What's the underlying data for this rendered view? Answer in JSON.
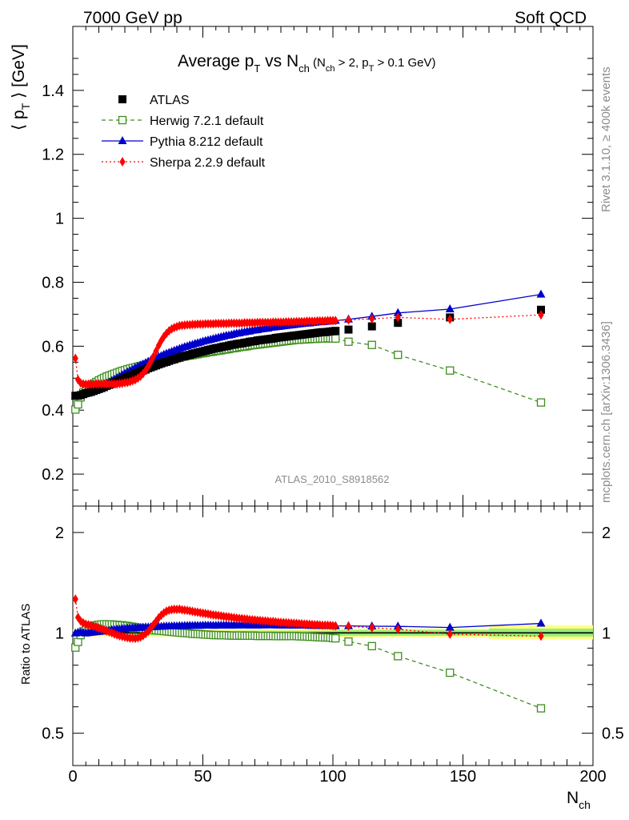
{
  "header": {
    "left": "7000 GeV pp",
    "right": "Soft QCD"
  },
  "title": {
    "main": "Average p",
    "main_sub": "T",
    "mid": " vs N",
    "mid_sub": "ch",
    "paren_open": " (N",
    "paren_sub1": "ch",
    "paren_mid": " > 2, p",
    "paren_sub2": "T",
    "paren_close": " > 0.1 GeV)"
  },
  "ylabel": {
    "open": "⟨ p",
    "sub": "T",
    "close": " ⟩  [GeV]"
  },
  "ratio_ylabel": "Ratio to ATLAS",
  "xlabel": {
    "main": "N",
    "sub": "ch"
  },
  "analysis_label": "ATLAS_2010_S8918562",
  "side_text": {
    "rivet": "Rivet 3.1.10, ≥ 400k events",
    "mcplots": "mcplots.cern.ch [arXiv:1306.3436]"
  },
  "colors": {
    "atlas": "#000000",
    "herwig": "#3e8e1f",
    "pythia": "#0000cc",
    "sherpa": "#ff0000",
    "band_inner": "#99ee77",
    "band_outer": "#ffff88"
  },
  "chart_data": [
    {
      "type": "scatter",
      "panel": "main",
      "xlim": [
        0,
        200
      ],
      "ylim": [
        0.1,
        1.6
      ],
      "yticks": [
        "0.2",
        "0.4",
        "0.6",
        "0.8",
        "1",
        "1.2",
        "1.4"
      ],
      "xticks": [
        "0",
        "50",
        "100",
        "150",
        "200"
      ],
      "legend_position": "top-left",
      "series": [
        {
          "name": "ATLAS",
          "style": "square-filled",
          "x": [
            1,
            2,
            3,
            4,
            5,
            6,
            7,
            8,
            9,
            10,
            11,
            12,
            13,
            14,
            15,
            16,
            17,
            18,
            19,
            20,
            21,
            22,
            23,
            24,
            25,
            26,
            27,
            28,
            29,
            30,
            31,
            32,
            33,
            34,
            35,
            36,
            37,
            38,
            39,
            40,
            41,
            42,
            43,
            44,
            45,
            46,
            47,
            48,
            49,
            50,
            51,
            52,
            53,
            54,
            55,
            56,
            57,
            58,
            59,
            60,
            61,
            62,
            63,
            64,
            65,
            66,
            67,
            68,
            69,
            70,
            71,
            72,
            73,
            74,
            75,
            76,
            77,
            78,
            79,
            80,
            81,
            82,
            83,
            84,
            85,
            86,
            87,
            88,
            89,
            90,
            91,
            92,
            93,
            94,
            95,
            96,
            97,
            98,
            99,
            100,
            101,
            106,
            115,
            125,
            145,
            180
          ],
          "y": [
            0.445,
            0.445,
            0.447,
            0.45,
            0.453,
            0.455,
            0.457,
            0.46,
            0.463,
            0.466,
            0.469,
            0.472,
            0.476,
            0.479,
            0.482,
            0.486,
            0.489,
            0.493,
            0.496,
            0.5,
            0.503,
            0.507,
            0.51,
            0.514,
            0.517,
            0.521,
            0.524,
            0.527,
            0.531,
            0.534,
            0.537,
            0.54,
            0.543,
            0.546,
            0.549,
            0.551,
            0.554,
            0.557,
            0.559,
            0.562,
            0.564,
            0.567,
            0.569,
            0.571,
            0.573,
            0.576,
            0.578,
            0.58,
            0.582,
            0.584,
            0.586,
            0.588,
            0.59,
            0.592,
            0.594,
            0.595,
            0.597,
            0.599,
            0.6,
            0.602,
            0.604,
            0.605,
            0.607,
            0.608,
            0.609,
            0.611,
            0.612,
            0.614,
            0.615,
            0.616,
            0.618,
            0.619,
            0.62,
            0.621,
            0.622,
            0.623,
            0.624,
            0.626,
            0.627,
            0.628,
            0.629,
            0.63,
            0.631,
            0.632,
            0.633,
            0.634,
            0.635,
            0.636,
            0.637,
            0.638,
            0.639,
            0.64,
            0.641,
            0.642,
            0.643,
            0.644,
            0.644,
            0.645,
            0.646,
            0.647,
            0.648,
            0.652,
            0.662,
            0.673,
            0.69,
            0.714
          ]
        },
        {
          "name": "Herwig 7.2.1 default",
          "style": "square-open-dashed",
          "x": [
            1,
            2,
            3,
            4,
            5,
            6,
            7,
            8,
            9,
            10,
            11,
            12,
            13,
            14,
            15,
            16,
            17,
            18,
            19,
            20,
            21,
            22,
            23,
            24,
            25,
            26,
            27,
            28,
            29,
            30,
            31,
            32,
            33,
            34,
            35,
            36,
            37,
            38,
            39,
            40,
            41,
            42,
            43,
            44,
            45,
            46,
            47,
            48,
            49,
            50,
            51,
            52,
            53,
            54,
            55,
            56,
            57,
            58,
            59,
            60,
            61,
            62,
            63,
            64,
            65,
            66,
            67,
            68,
            69,
            70,
            71,
            72,
            73,
            74,
            75,
            76,
            77,
            78,
            79,
            80,
            81,
            82,
            83,
            84,
            85,
            86,
            87,
            88,
            89,
            90,
            91,
            92,
            93,
            94,
            95,
            96,
            97,
            98,
            99,
            100,
            101,
            106,
            115,
            125,
            145,
            180
          ],
          "y": [
            0.402,
            0.418,
            0.44,
            0.455,
            0.465,
            0.472,
            0.478,
            0.483,
            0.488,
            0.493,
            0.497,
            0.501,
            0.505,
            0.508,
            0.511,
            0.514,
            0.517,
            0.52,
            0.523,
            0.525,
            0.528,
            0.53,
            0.532,
            0.534,
            0.536,
            0.538,
            0.54,
            0.542,
            0.544,
            0.546,
            0.548,
            0.55,
            0.552,
            0.554,
            0.556,
            0.557,
            0.559,
            0.561,
            0.562,
            0.564,
            0.565,
            0.567,
            0.568,
            0.57,
            0.571,
            0.572,
            0.574,
            0.575,
            0.577,
            0.578,
            0.579,
            0.581,
            0.582,
            0.583,
            0.585,
            0.586,
            0.587,
            0.589,
            0.59,
            0.591,
            0.593,
            0.594,
            0.595,
            0.597,
            0.598,
            0.599,
            0.6,
            0.602,
            0.603,
            0.604,
            0.605,
            0.606,
            0.607,
            0.608,
            0.609,
            0.61,
            0.611,
            0.612,
            0.613,
            0.614,
            0.615,
            0.616,
            0.617,
            0.618,
            0.619,
            0.62,
            0.62,
            0.621,
            0.621,
            0.622,
            0.622,
            0.623,
            0.623,
            0.623,
            0.624,
            0.624,
            0.624,
            0.625,
            0.625,
            0.624,
            0.624,
            0.614,
            0.604,
            0.573,
            0.524,
            0.424
          ]
        },
        {
          "name": "Pythia 8.212 default",
          "style": "triangle-filled-solid",
          "x": [
            1,
            2,
            3,
            4,
            5,
            6,
            7,
            8,
            9,
            10,
            11,
            12,
            13,
            14,
            15,
            16,
            17,
            18,
            19,
            20,
            21,
            22,
            23,
            24,
            25,
            26,
            27,
            28,
            29,
            30,
            31,
            32,
            33,
            34,
            35,
            36,
            37,
            38,
            39,
            40,
            41,
            42,
            43,
            44,
            45,
            46,
            47,
            48,
            49,
            50,
            51,
            52,
            53,
            54,
            55,
            56,
            57,
            58,
            59,
            60,
            61,
            62,
            63,
            64,
            65,
            66,
            67,
            68,
            69,
            70,
            71,
            72,
            73,
            74,
            75,
            76,
            77,
            78,
            79,
            80,
            81,
            82,
            83,
            84,
            85,
            86,
            87,
            88,
            89,
            90,
            91,
            92,
            93,
            94,
            95,
            96,
            97,
            98,
            99,
            100,
            101,
            106,
            115,
            125,
            145,
            180
          ],
          "y": [
            0.444,
            0.446,
            0.448,
            0.45,
            0.452,
            0.455,
            0.458,
            0.462,
            0.466,
            0.47,
            0.474,
            0.478,
            0.483,
            0.487,
            0.492,
            0.496,
            0.501,
            0.505,
            0.51,
            0.514,
            0.519,
            0.523,
            0.527,
            0.532,
            0.536,
            0.54,
            0.544,
            0.548,
            0.552,
            0.556,
            0.56,
            0.563,
            0.567,
            0.57,
            0.574,
            0.577,
            0.58,
            0.583,
            0.586,
            0.589,
            0.592,
            0.595,
            0.598,
            0.6,
            0.603,
            0.605,
            0.608,
            0.61,
            0.612,
            0.615,
            0.617,
            0.619,
            0.621,
            0.623,
            0.625,
            0.627,
            0.629,
            0.631,
            0.633,
            0.634,
            0.636,
            0.638,
            0.64,
            0.641,
            0.643,
            0.644,
            0.646,
            0.647,
            0.649,
            0.65,
            0.651,
            0.653,
            0.654,
            0.655,
            0.656,
            0.658,
            0.659,
            0.66,
            0.661,
            0.662,
            0.663,
            0.664,
            0.665,
            0.666,
            0.667,
            0.668,
            0.669,
            0.67,
            0.671,
            0.672,
            0.672,
            0.673,
            0.674,
            0.675,
            0.676,
            0.676,
            0.677,
            0.678,
            0.679,
            0.679,
            0.68,
            0.684,
            0.693,
            0.704,
            0.716,
            0.762
          ]
        },
        {
          "name": "Sherpa 2.2.9 default",
          "style": "diamond-filled-dotted",
          "x": [
            1,
            2,
            3,
            4,
            5,
            6,
            7,
            8,
            9,
            10,
            11,
            12,
            13,
            14,
            15,
            16,
            17,
            18,
            19,
            20,
            21,
            22,
            23,
            24,
            25,
            26,
            27,
            28,
            29,
            30,
            31,
            32,
            33,
            34,
            35,
            36,
            37,
            38,
            39,
            40,
            41,
            42,
            43,
            44,
            45,
            46,
            47,
            48,
            49,
            50,
            51,
            52,
            53,
            54,
            55,
            56,
            57,
            58,
            59,
            60,
            61,
            62,
            63,
            64,
            65,
            66,
            67,
            68,
            69,
            70,
            71,
            72,
            73,
            74,
            75,
            76,
            77,
            78,
            79,
            80,
            81,
            82,
            83,
            84,
            85,
            86,
            87,
            88,
            89,
            90,
            91,
            92,
            93,
            94,
            95,
            96,
            97,
            98,
            99,
            100,
            101,
            106,
            115,
            125,
            145,
            180
          ],
          "y": [
            0.562,
            0.495,
            0.485,
            0.482,
            0.481,
            0.481,
            0.481,
            0.481,
            0.482,
            0.482,
            0.482,
            0.482,
            0.482,
            0.482,
            0.482,
            0.482,
            0.482,
            0.483,
            0.484,
            0.486,
            0.487,
            0.489,
            0.492,
            0.495,
            0.5,
            0.506,
            0.514,
            0.524,
            0.537,
            0.552,
            0.568,
            0.585,
            0.602,
            0.617,
            0.63,
            0.64,
            0.648,
            0.654,
            0.658,
            0.661,
            0.664,
            0.665,
            0.666,
            0.667,
            0.667,
            0.668,
            0.668,
            0.669,
            0.669,
            0.669,
            0.67,
            0.67,
            0.67,
            0.67,
            0.671,
            0.671,
            0.671,
            0.671,
            0.671,
            0.672,
            0.672,
            0.672,
            0.672,
            0.672,
            0.672,
            0.673,
            0.673,
            0.673,
            0.673,
            0.673,
            0.674,
            0.674,
            0.674,
            0.674,
            0.674,
            0.674,
            0.675,
            0.675,
            0.675,
            0.675,
            0.675,
            0.676,
            0.676,
            0.676,
            0.676,
            0.677,
            0.677,
            0.677,
            0.677,
            0.678,
            0.678,
            0.678,
            0.678,
            0.679,
            0.679,
            0.679,
            0.679,
            0.68,
            0.68,
            0.68,
            0.68,
            0.682,
            0.686,
            0.69,
            0.684,
            0.698
          ]
        }
      ]
    },
    {
      "type": "scatter",
      "panel": "ratio",
      "xlim": [
        0,
        200
      ],
      "ylim": [
        0.4,
        2.4
      ],
      "yscale": "log",
      "yticks": [
        "0.5",
        "1",
        "2"
      ],
      "xlabel": "N_ch",
      "ylabel": "Ratio to ATLAS",
      "band": {
        "x": [
          0,
          100,
          160,
          200
        ],
        "inner": [
          [
            0.985,
            1.015
          ],
          [
            0.98,
            1.02
          ],
          [
            0.975,
            1.03
          ],
          [
            0.975,
            1.03
          ]
        ],
        "outer": [
          [
            0.975,
            1.025
          ],
          [
            0.97,
            1.03
          ],
          [
            0.955,
            1.055
          ],
          [
            0.955,
            1.055
          ]
        ]
      },
      "series": [
        {
          "name": "Herwig 7.2.1 default",
          "derived_from": "main"
        },
        {
          "name": "Pythia 8.212 default",
          "derived_from": "main"
        },
        {
          "name": "Sherpa 2.2.9 default",
          "derived_from": "main"
        }
      ]
    }
  ]
}
